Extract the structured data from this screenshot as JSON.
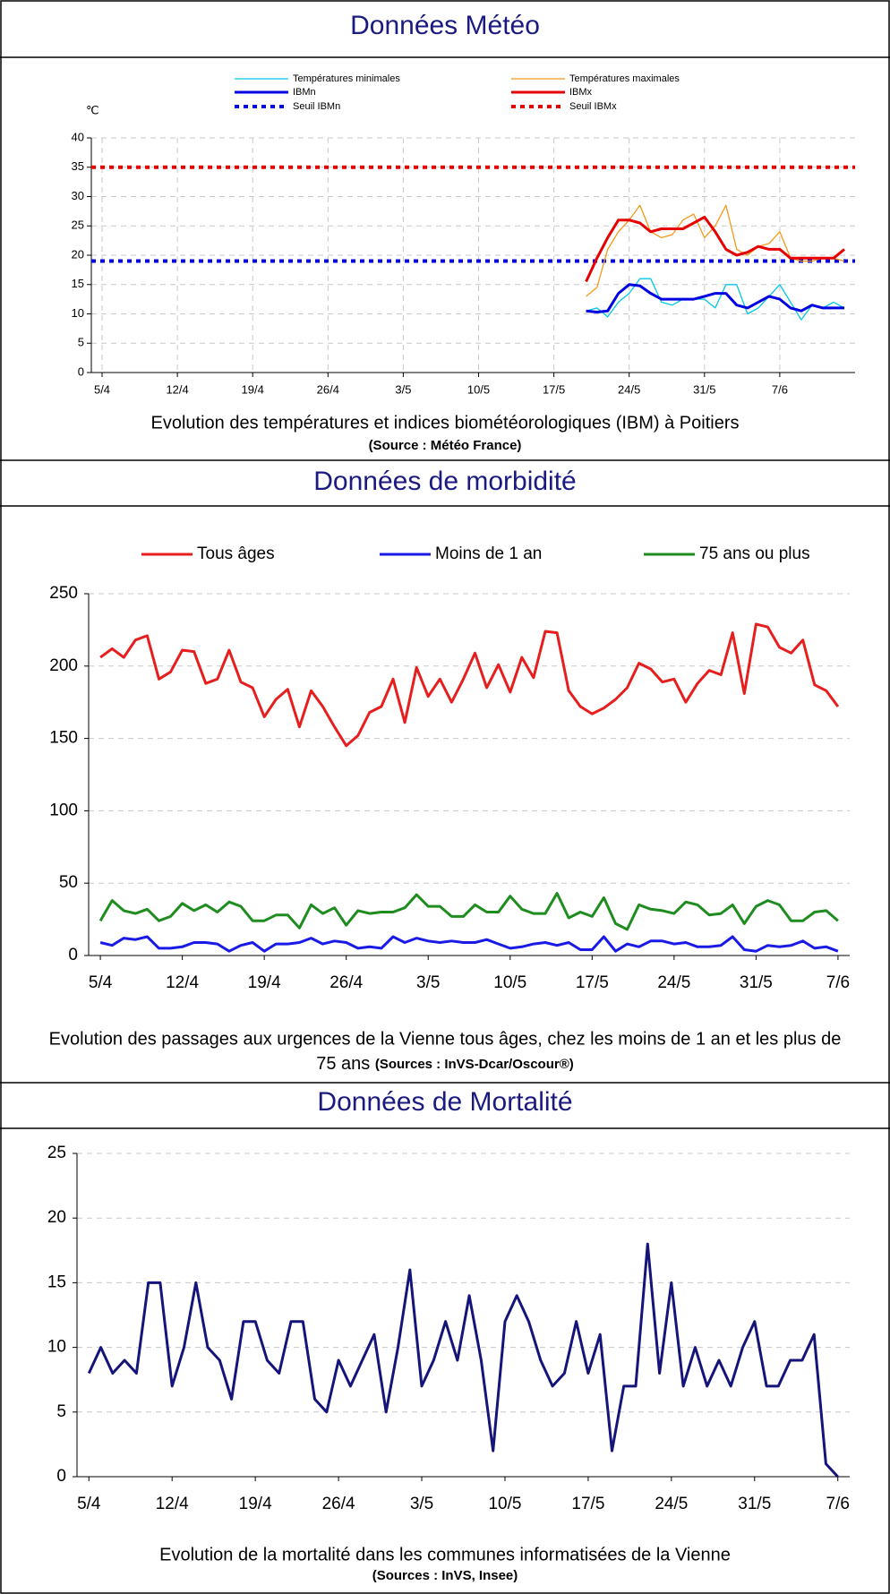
{
  "sections": [
    {
      "title": "Données Météo",
      "caption": "Evolution des températures et indices biométéorologiques (IBM) à Poitiers",
      "source": "(Source : Météo France)",
      "chart_data": {
        "type": "line",
        "y_label": "℃",
        "x": [
          "20/5",
          "21/5",
          "22/5",
          "23/5",
          "24/5",
          "25/5",
          "26/5",
          "27/5",
          "28/5",
          "29/5",
          "30/5",
          "31/5",
          "1/6",
          "2/6",
          "3/6",
          "4/6",
          "5/6",
          "6/6",
          "7/6",
          "8/6",
          "9/6",
          "10/6",
          "11/6",
          "12/6",
          "13/6"
        ],
        "series": [
          {
            "name": "Températures minimales",
            "color": "#00c8e6",
            "weight": "thin",
            "values": [
              10.5,
              11,
              9.5,
              12,
              13.5,
              16,
              16,
              12,
              11.5,
              12.5,
              12.5,
              12.5,
              11,
              15,
              15,
              10,
              11,
              13,
              15,
              12,
              9,
              11.5,
              11,
              12,
              11
            ]
          },
          {
            "name": "Températures maximales",
            "color": "#f29a1a",
            "weight": "thin",
            "values": [
              13,
              14.5,
              21,
              24,
              26,
              28.5,
              24,
              23,
              23.5,
              26,
              27,
              23,
              25,
              28.5,
              21,
              20,
              21.5,
              22,
              24,
              19.5,
              19,
              19,
              19.5,
              19.5,
              19
            ]
          },
          {
            "name": "IBMn",
            "color": "#0000e0",
            "weight": "bold",
            "values": [
              10.5,
              10.3,
              10.5,
              13.5,
              15,
              14.8,
              13.5,
              12.5,
              12.5,
              12.5,
              12.5,
              13,
              13.5,
              13.5,
              11.5,
              11,
              12,
              13,
              12.5,
              11,
              10.5,
              11.5,
              11,
              11,
              11
            ]
          },
          {
            "name": "IBMx",
            "color": "#e60000",
            "weight": "bold",
            "values": [
              15.5,
              19.5,
              23,
              26,
              26,
              25.5,
              24,
              24.5,
              24.5,
              24.5,
              25.5,
              26.5,
              24,
              21,
              20,
              20.5,
              21.5,
              21,
              21,
              19.5,
              19.5,
              19.5,
              19.5,
              19.5,
              21
            ]
          }
        ],
        "reference_lines": [
          {
            "name": "Seuil IBMn",
            "color": "#0000e0",
            "style": "dotted",
            "value": 19
          },
          {
            "name": "Seuil IBMx",
            "color": "#e60000",
            "style": "dotted",
            "value": 35
          }
        ],
        "xlim": [
          "4/4",
          "14/6"
        ],
        "xticks": [
          "5/4",
          "12/4",
          "19/4",
          "26/4",
          "3/5",
          "10/5",
          "17/5",
          "24/5",
          "31/5",
          "7/6"
        ],
        "ylim": [
          0,
          40
        ],
        "yticks": [
          0,
          5,
          10,
          15,
          20,
          25,
          30,
          35,
          40
        ],
        "grid": "both"
      }
    },
    {
      "title": "Données de morbidité",
      "caption": [
        "Evolution des passages aux urgences de la Vienne tous âges, chez les moins de 1 an et les plus de",
        "75 ans"
      ],
      "source": "(Sources : InVS-Dcar/Oscour®)",
      "chart_data": {
        "type": "line",
        "x": [
          "5/4",
          "6/4",
          "7/4",
          "8/4",
          "9/4",
          "10/4",
          "11/4",
          "12/4",
          "13/4",
          "14/4",
          "15/4",
          "16/4",
          "17/4",
          "18/4",
          "19/4",
          "20/4",
          "21/4",
          "22/4",
          "23/4",
          "24/4",
          "25/4",
          "26/4",
          "27/4",
          "28/4",
          "29/4",
          "30/4",
          "1/5",
          "2/5",
          "3/5",
          "4/5",
          "5/5",
          "6/5",
          "7/5",
          "8/5",
          "9/5",
          "10/5",
          "11/5",
          "12/5",
          "13/5",
          "14/5",
          "15/5",
          "16/5",
          "17/5",
          "18/5",
          "19/5",
          "20/5",
          "21/5",
          "22/5",
          "23/5",
          "24/5",
          "25/5",
          "26/5",
          "27/5",
          "28/5",
          "29/5",
          "30/5",
          "31/5",
          "1/6",
          "2/6",
          "3/6",
          "4/6",
          "5/6",
          "6/6",
          "7/6"
        ],
        "series": [
          {
            "name": "Tous âges",
            "color": "#e61e1e",
            "weight": "bold",
            "values": [
              206,
              212,
              206,
              218,
              221,
              191,
              196,
              211,
              210,
              188,
              191,
              211,
              189,
              185,
              165,
              177,
              184,
              158,
              183,
              172,
              158,
              145,
              152,
              168,
              172,
              191,
              161,
              199,
              179,
              191,
              175,
              191,
              209,
              185,
              201,
              182,
              206,
              192,
              224,
              223,
              183,
              172,
              167,
              171,
              177,
              185,
              202,
              198,
              189,
              191,
              175,
              188,
              197,
              194,
              223,
              181,
              229,
              227,
              213,
              209,
              218,
              187,
              183,
              172
            ]
          },
          {
            "name": "Moins de 1 an",
            "color": "#1a1ae6",
            "weight": "bold",
            "values": [
              9,
              7,
              12,
              11,
              13,
              5,
              5,
              6,
              9,
              9,
              8,
              3,
              7,
              9,
              3,
              8,
              8,
              9,
              12,
              8,
              10,
              9,
              5,
              6,
              5,
              13,
              9,
              12,
              10,
              9,
              10,
              9,
              9,
              11,
              8,
              5,
              6,
              8,
              9,
              7,
              9,
              4,
              4,
              13,
              3,
              8,
              6,
              10,
              10,
              8,
              9,
              6,
              6,
              7,
              13,
              4,
              3,
              7,
              6,
              7,
              10,
              5,
              6,
              3
            ]
          },
          {
            "name": "75 ans ou plus",
            "color": "#1e8c1e",
            "weight": "bold",
            "values": [
              24,
              38,
              31,
              29,
              32,
              24,
              27,
              36,
              31,
              35,
              30,
              37,
              34,
              24,
              24,
              28,
              28,
              19,
              35,
              29,
              33,
              21,
              31,
              29,
              30,
              30,
              33,
              42,
              34,
              34,
              27,
              27,
              35,
              30,
              30,
              41,
              32,
              29,
              29,
              43,
              26,
              30,
              27,
              40,
              22,
              18,
              35,
              32,
              31,
              29,
              37,
              35,
              28,
              29,
              35,
              22,
              34,
              38,
              35,
              24,
              24,
              30,
              31,
              24
            ]
          }
        ],
        "xlim": [
          "4/4",
          "8/6"
        ],
        "xticks": [
          "5/4",
          "12/4",
          "19/4",
          "26/4",
          "3/5",
          "10/5",
          "17/5",
          "24/5",
          "31/5",
          "7/6"
        ],
        "ylim": [
          0,
          250
        ],
        "yticks": [
          0,
          50,
          100,
          150,
          200,
          250
        ],
        "grid": "y"
      }
    },
    {
      "title": "Données de Mortalité",
      "caption": "Evolution de la mortalité dans les communes informatisées de  la Vienne",
      "source": "(Sources : InVS, Insee)",
      "chart_data": {
        "type": "line",
        "color": "#14147a",
        "x": [
          "5/4",
          "6/4",
          "7/4",
          "8/4",
          "9/4",
          "10/4",
          "11/4",
          "12/4",
          "13/4",
          "14/4",
          "15/4",
          "16/4",
          "17/4",
          "18/4",
          "19/4",
          "20/4",
          "21/4",
          "22/4",
          "23/4",
          "24/4",
          "25/4",
          "26/4",
          "27/4",
          "28/4",
          "29/4",
          "30/4",
          "1/5",
          "2/5",
          "3/5",
          "4/5",
          "5/5",
          "6/5",
          "7/5",
          "8/5",
          "9/5",
          "10/5",
          "11/5",
          "12/5",
          "13/5",
          "14/5",
          "15/5",
          "16/5",
          "17/5",
          "18/5",
          "19/5",
          "20/5",
          "21/5",
          "22/5",
          "23/5",
          "24/5",
          "25/5",
          "26/5",
          "27/5",
          "28/5",
          "29/5",
          "30/5",
          "31/5",
          "1/6",
          "2/6",
          "3/6",
          "4/6",
          "5/6",
          "6/6",
          "7/6"
        ],
        "values": [
          8,
          10,
          8,
          9,
          8,
          15,
          15,
          7,
          10,
          15,
          10,
          9,
          6,
          12,
          12,
          9,
          8,
          12,
          12,
          6,
          5,
          9,
          7,
          9,
          11,
          5,
          10,
          16,
          7,
          9,
          12,
          9,
          14,
          9,
          2,
          12,
          14,
          12,
          9,
          7,
          8,
          12,
          8,
          11,
          2,
          7,
          7,
          18,
          8,
          15,
          7,
          10,
          7,
          9,
          7,
          10,
          12,
          7,
          7,
          9,
          9,
          11,
          1,
          0
        ],
        "xlim": [
          "4/4",
          "8/6"
        ],
        "xticks": [
          "5/4",
          "12/4",
          "19/4",
          "26/4",
          "3/5",
          "10/5",
          "17/5",
          "24/5",
          "31/5",
          "7/6"
        ],
        "ylim": [
          0,
          25
        ],
        "yticks": [
          0,
          5,
          10,
          15,
          20,
          25
        ],
        "grid": "y"
      }
    }
  ]
}
